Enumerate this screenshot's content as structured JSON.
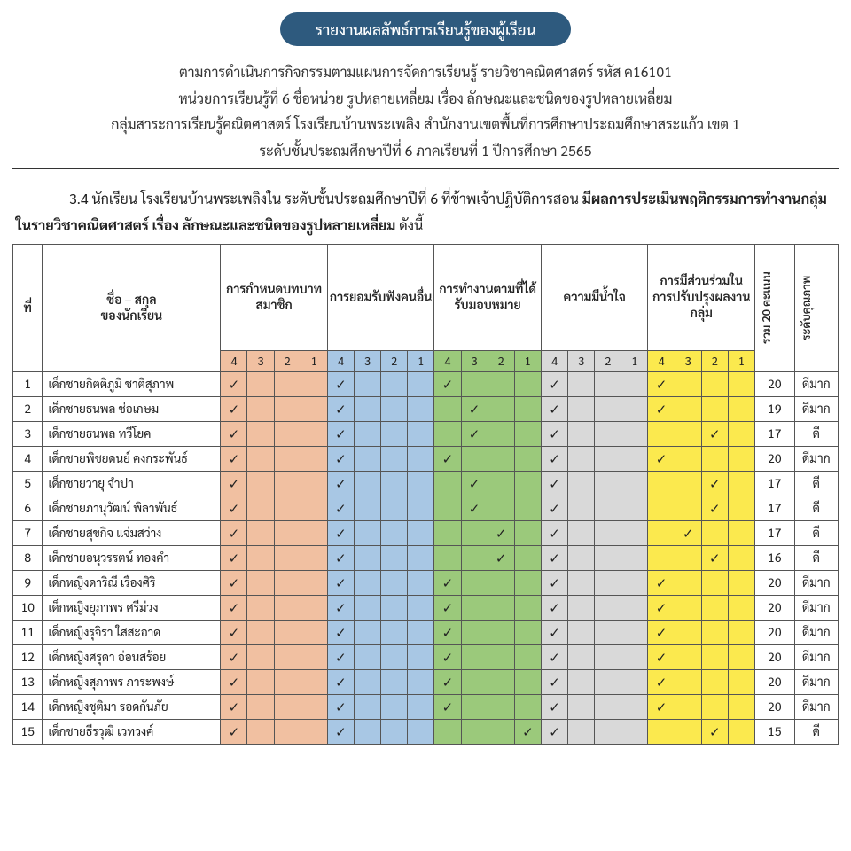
{
  "title": "รายงานผลลัพธ์การเรียนรู้ของผู้เรียน",
  "header": {
    "line1": "ตามการดำเนินการกิจกรรมตามแผนการจัดการเรียนรู้  รายวิชาคณิตศาสตร์  รหัส ค16101",
    "line2": "หน่วยการเรียนรู้ที่ 6 ชื่อหน่วย รูปหลายเหลี่ยม   เรื่อง ลักษณะและชนิดของรูปหลายเหลี่ยม",
    "line3": "กลุ่มสาระการเรียนรู้คณิตศาสตร์  โรงเรียนบ้านพระเพลิง สำนักงานเขตพื้นที่การศึกษาประถมศึกษาสระแก้ว เขต 1",
    "line4": "ระดับชั้นประถมศึกษาปีที่ 6  ภาคเรียนที่ 1 ปีการศึกษา 2565"
  },
  "intro": {
    "lead": "3.4 นักเรียน โรงเรียนบ้านพระเพลิงใน ระดับชั้นประถมศึกษาปีที่ 6 ที่ข้าพเจ้าปฏิบัติการสอน ",
    "bold1": "มีผลการประเมินพฤติกรรมการทำงานกลุ่ม ในรายวิชาคณิตศาสตร์ เรื่อง ลักษณะและชนิดของรูปหลายเหลี่ยม",
    "tail": "   ดังนี้"
  },
  "columns": {
    "idx": "ที่",
    "name": "ชื่อ – สกุล\nของนักเรียน",
    "groups": [
      "การกำหนดบทบาทสมาชิก",
      "การยอมรับฟังคนอื่น",
      "การทำงานตามที่ได้รับมอบหมาย",
      "ความมีน้ำใจ",
      "การมีส่วนร่วมในการปรับปรุงผลงานกลุ่ม"
    ],
    "subscores": [
      "4",
      "3",
      "2",
      "1"
    ],
    "total": "รวม 20 คะแนน",
    "level": "ระดับคุณภาพ"
  },
  "colors": {
    "groups": [
      "c-orange",
      "c-blue",
      "c-green",
      "c-gray",
      "c-yellow"
    ]
  },
  "students": [
    {
      "n": 1,
      "name": "เด็กชายกิตติภูมิ ชาติสุภาพ",
      "s": [
        4,
        4,
        4,
        4,
        4
      ],
      "t": 20,
      "l": "ดีมาก"
    },
    {
      "n": 2,
      "name": "เด็กชายธนพล ช่อเกษม",
      "s": [
        4,
        4,
        3,
        4,
        4
      ],
      "t": 19,
      "l": "ดีมาก"
    },
    {
      "n": 3,
      "name": "เด็กชายธนพล ทวีโยค",
      "s": [
        4,
        4,
        3,
        4,
        2
      ],
      "t": 17,
      "l": "ดี"
    },
    {
      "n": 4,
      "name": "เด็กชายพิชยดนย์ คงกระพันธ์",
      "s": [
        4,
        4,
        4,
        4,
        4
      ],
      "t": 20,
      "l": "ดีมาก"
    },
    {
      "n": 5,
      "name": "เด็กชายวายุ จำปา",
      "s": [
        4,
        4,
        3,
        4,
        2
      ],
      "t": 17,
      "l": "ดี"
    },
    {
      "n": 6,
      "name": "เด็กชายภานุวัฒน์  พิลาพันธ์",
      "s": [
        4,
        4,
        3,
        4,
        2
      ],
      "t": 17,
      "l": "ดี"
    },
    {
      "n": 7,
      "name": "เด็กชายสุขกิจ แจ่มสว่าง",
      "s": [
        4,
        4,
        2,
        4,
        3
      ],
      "t": 17,
      "l": "ดี"
    },
    {
      "n": 8,
      "name": "เด็กชายอนุวรรตน์ ทองคำ",
      "s": [
        4,
        4,
        2,
        4,
        2
      ],
      "t": 16,
      "l": "ดี"
    },
    {
      "n": 9,
      "name": "เด็กหญิงดาริณี เรืองศิริ",
      "s": [
        4,
        4,
        4,
        4,
        4
      ],
      "t": 20,
      "l": "ดีมาก"
    },
    {
      "n": 10,
      "name": "เด็กหญิงยุภาพร ศรีม่วง",
      "s": [
        4,
        4,
        4,
        4,
        4
      ],
      "t": 20,
      "l": "ดีมาก"
    },
    {
      "n": 11,
      "name": "เด็กหญิงรุจิรา ใสสะอาด",
      "s": [
        4,
        4,
        4,
        4,
        4
      ],
      "t": 20,
      "l": "ดีมาก"
    },
    {
      "n": 12,
      "name": "เด็กหญิงศรุดา อ่อนสร้อย",
      "s": [
        4,
        4,
        4,
        4,
        4
      ],
      "t": 20,
      "l": "ดีมาก"
    },
    {
      "n": 13,
      "name": "เด็กหญิงสุภาพร ภาระพงษ์",
      "s": [
        4,
        4,
        4,
        4,
        4
      ],
      "t": 20,
      "l": "ดีมาก"
    },
    {
      "n": 14,
      "name": "เด็กหญิงชุติมา รอดกันภัย",
      "s": [
        4,
        4,
        4,
        4,
        4
      ],
      "t": 20,
      "l": "ดีมาก"
    },
    {
      "n": 15,
      "name": "เด็กชายธีรวุฒิ เวทวงค์",
      "s": [
        4,
        4,
        1,
        4,
        2
      ],
      "t": 15,
      "l": "ดี"
    }
  ],
  "check": "✓"
}
